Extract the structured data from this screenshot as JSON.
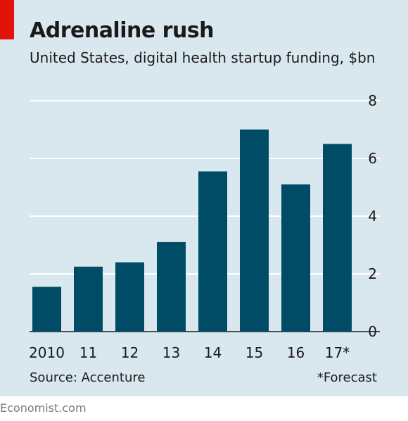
{
  "header": {
    "title": "Adrenaline rush",
    "subtitle": "United States, digital health startup funding, $bn"
  },
  "footer": {
    "source": "Source: Accenture",
    "footnote": "*Forecast",
    "brand": "Economist.com"
  },
  "colors": {
    "bar": "#004b66",
    "background": "#d9e7ee",
    "accent": "#e3120b",
    "grid": "#ffffff"
  },
  "chart_data": {
    "type": "bar",
    "title": "Adrenaline rush",
    "subtitle": "United States, digital health startup funding, $bn",
    "categories": [
      "2010",
      "11",
      "12",
      "13",
      "14",
      "15",
      "16",
      "17*"
    ],
    "values": [
      1.55,
      2.25,
      2.4,
      3.1,
      5.55,
      7.0,
      5.1,
      6.5
    ],
    "ylim": [
      0,
      8
    ],
    "yticks": [
      "0",
      "2",
      "4",
      "6",
      "8"
    ],
    "grid": true,
    "y_axis_side": "right"
  }
}
